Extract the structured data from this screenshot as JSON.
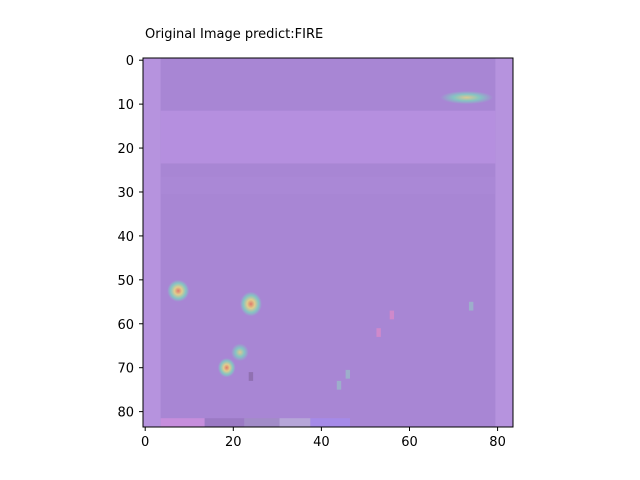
{
  "chart_data": {
    "type": "heatmap",
    "title": "Original Image predict:FIRE",
    "xlabel": "",
    "ylabel": "",
    "xlim": [
      -0.5,
      83.5
    ],
    "ylim": [
      83.5,
      -0.5
    ],
    "x_ticks": [
      0,
      20,
      40,
      60,
      80
    ],
    "y_ticks": [
      0,
      10,
      20,
      30,
      40,
      50,
      60,
      70,
      80
    ],
    "x_tick_labels": [
      "0",
      "20",
      "40",
      "60",
      "80"
    ],
    "y_tick_labels": [
      "0",
      "10",
      "20",
      "30",
      "40",
      "50",
      "60",
      "70",
      "80"
    ],
    "grid": false,
    "colors": {
      "background": "#a886d4",
      "border_band": "#b693de",
      "upper_band": "#b58fdf",
      "mid_band": "#aa88d6",
      "hotspot_low": "#7fcfc0",
      "hotspot_mid": "#e3d08a",
      "hotspot_high": "#e07a6a"
    },
    "hotspots": [
      {
        "x": 73,
        "y": 8.5,
        "rx": 6,
        "ry": 1.5,
        "intensity": 0.55
      },
      {
        "x": 7.5,
        "y": 52.5,
        "rx": 2.5,
        "ry": 2.5,
        "intensity": 0.9
      },
      {
        "x": 24,
        "y": 55.5,
        "rx": 2.5,
        "ry": 2.8,
        "intensity": 0.8
      },
      {
        "x": 21.5,
        "y": 66.5,
        "rx": 2,
        "ry": 2,
        "intensity": 0.5
      },
      {
        "x": 18.5,
        "y": 70,
        "rx": 2,
        "ry": 2.2,
        "intensity": 0.95
      }
    ],
    "specks": [
      {
        "x": 56,
        "y": 58,
        "color": "#d88ac8"
      },
      {
        "x": 53,
        "y": 62,
        "color": "#d88ac8"
      },
      {
        "x": 24,
        "y": 72,
        "color": "#8a6aa8"
      },
      {
        "x": 46,
        "y": 71.5,
        "color": "#9ab8c8"
      },
      {
        "x": 44,
        "y": 74,
        "color": "#9ab8c8"
      },
      {
        "x": 74,
        "y": 56,
        "color": "#9ab8c8"
      }
    ],
    "bottom_strip": [
      {
        "x0": 3.5,
        "x1": 13.5,
        "color": "#c68edc"
      },
      {
        "x0": 13.5,
        "x1": 22.5,
        "color": "#9b7ac4"
      },
      {
        "x0": 22.5,
        "x1": 30.5,
        "color": "#a28cc8"
      },
      {
        "x0": 30.5,
        "x1": 37.5,
        "color": "#b6a6d8"
      },
      {
        "x0": 37.5,
        "x1": 46.5,
        "color": "#a58ae8"
      }
    ]
  }
}
